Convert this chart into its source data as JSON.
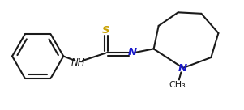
{
  "bg_color": "#ffffff",
  "line_color": "#1a1a1a",
  "N_color": "#1a1acc",
  "S_color": "#c8a000",
  "figsize": [
    3.01,
    1.36
  ],
  "dpi": 100,
  "bond_lw": 1.5,
  "font_size": 8.5,
  "xlim": [
    0,
    10.0
  ],
  "ylim": [
    3.2,
    7.5
  ]
}
